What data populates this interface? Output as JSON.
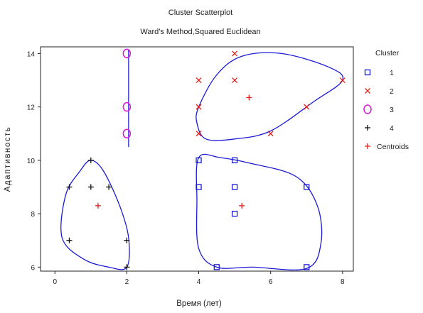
{
  "chart_data": {
    "type": "scatter",
    "title": "Cluster Scatterplot",
    "subtitle": "Ward's Method,Squared Euclidean",
    "xlabel": "Время (лет)",
    "ylabel": "Адаптивность",
    "xlim": [
      -0.4,
      8.3
    ],
    "ylim": [
      5.85,
      14.25
    ],
    "xticks": [
      "0",
      "2",
      "4",
      "6",
      "8"
    ],
    "xtick_values": [
      0,
      2,
      4,
      6,
      8
    ],
    "yticks": [
      "6",
      "8",
      "10",
      "12",
      "14"
    ],
    "ytick_values": [
      6,
      8,
      10,
      12,
      14
    ],
    "grid": false,
    "legend_title": "Cluster",
    "legend_position": "right",
    "hull_color": "#1a1ad6",
    "series": [
      {
        "name": "1",
        "marker": "square",
        "color": "#1a1ad6",
        "x": [
          4,
          4,
          5,
          5,
          5,
          4.5,
          7,
          7
        ],
        "y": [
          10,
          9,
          10,
          9,
          8,
          6,
          9,
          6
        ]
      },
      {
        "name": "2",
        "marker": "x",
        "color": "#e0201a",
        "x": [
          4,
          5,
          5,
          8,
          4,
          4,
          6,
          7
        ],
        "y": [
          13,
          14,
          13,
          13,
          12,
          11,
          11,
          12
        ]
      },
      {
        "name": "3",
        "marker": "circle",
        "color": "#d81ad8",
        "x": [
          2,
          2,
          2
        ],
        "y": [
          14,
          12,
          11
        ]
      },
      {
        "name": "4",
        "marker": "plus",
        "color": "#111111",
        "x": [
          1,
          0.4,
          1,
          1.5,
          0.4,
          2,
          2
        ],
        "y": [
          10,
          9,
          9,
          9,
          7,
          7,
          6
        ]
      },
      {
        "name": "Centroids",
        "marker": "plus",
        "color": "#e0201a",
        "x": [
          1.2,
          5.4,
          5.2
        ],
        "y": [
          8.3,
          12.35,
          8.3
        ]
      }
    ],
    "contours": [
      [
        [
          4,
          12
        ],
        [
          4.5,
          13.2
        ],
        [
          5.2,
          13.9
        ],
        [
          6.3,
          14.0
        ],
        [
          7.6,
          13.5
        ],
        [
          8,
          13
        ],
        [
          7.2,
          12.2
        ],
        [
          6,
          11.1
        ],
        [
          5,
          10.8
        ],
        [
          4.2,
          10.8
        ],
        [
          3.95,
          11.4
        ]
      ],
      [
        [
          4,
          10.1
        ],
        [
          4.6,
          10.1
        ],
        [
          5.4,
          9.9
        ],
        [
          6.7,
          9.4
        ],
        [
          7.3,
          8.3
        ],
        [
          7.4,
          6.9
        ],
        [
          7.0,
          5.95
        ],
        [
          5.5,
          6.0
        ],
        [
          4.5,
          6.0
        ],
        [
          4.0,
          6.7
        ],
        [
          3.95,
          8.5
        ]
      ],
      [
        [
          1,
          10
        ],
        [
          1.35,
          9.6
        ],
        [
          1.8,
          8.3
        ],
        [
          2.05,
          7.1
        ],
        [
          2.0,
          6.0
        ],
        [
          1.5,
          6.0
        ],
        [
          0.8,
          6.3
        ],
        [
          0.2,
          7.1
        ],
        [
          0.3,
          8.7
        ],
        [
          0.7,
          9.6
        ]
      ]
    ],
    "cluster3_line": {
      "x": 2.05,
      "y": [
        14.15,
        10.5
      ]
    }
  }
}
